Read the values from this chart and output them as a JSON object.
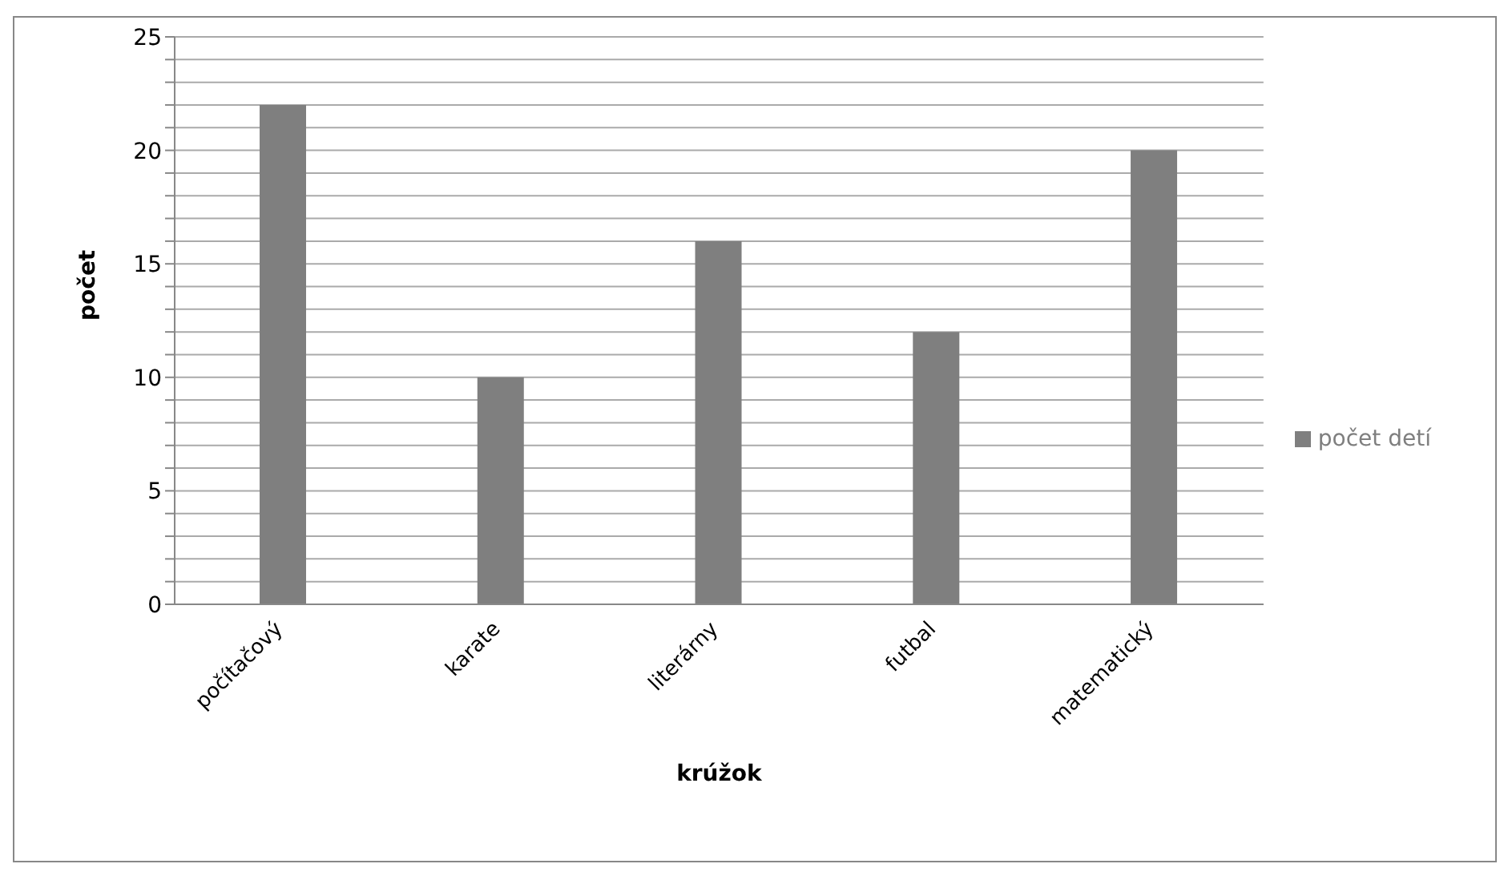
{
  "chart_data": {
    "type": "bar",
    "categories": [
      "počítačový",
      "karate",
      "literárny",
      "futbal",
      "matematický"
    ],
    "series": [
      {
        "name": "počet detí",
        "color": "#7f7f7f",
        "values": [
          22,
          10,
          16,
          12,
          20
        ]
      }
    ],
    "xlabel": "krúžok",
    "ylabel": "počet",
    "ylim": [
      0,
      25
    ],
    "yticks": [
      0,
      {
        "value": 1,
        "label": null
      },
      {
        "value": 2,
        "label": null
      },
      {
        "value": 3,
        "label": null
      },
      {
        "value": 4,
        "label": null
      },
      5,
      {
        "value": 6,
        "label": null
      },
      {
        "value": 7,
        "label": null
      },
      {
        "value": 8,
        "label": null
      },
      {
        "value": 9,
        "label": null
      },
      10,
      {
        "value": 11,
        "label": null
      },
      {
        "value": 12,
        "label": null
      },
      {
        "value": 13,
        "label": null
      },
      {
        "value": 14,
        "label": null
      },
      15,
      {
        "value": 16,
        "label": null
      },
      {
        "value": 17,
        "label": null
      },
      {
        "value": 18,
        "label": null
      },
      {
        "value": 19,
        "label": null
      },
      20,
      {
        "value": 21,
        "label": null
      },
      {
        "value": 22,
        "label": null
      },
      {
        "value": 23,
        "label": null
      },
      {
        "value": 24,
        "label": null
      },
      25
    ],
    "grid": "y",
    "legend": "right"
  }
}
